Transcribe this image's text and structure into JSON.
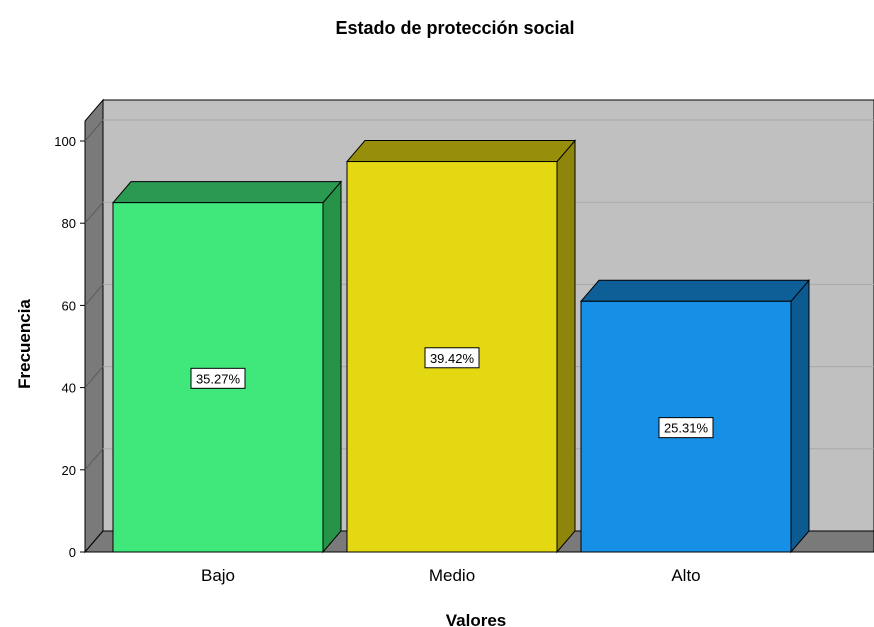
{
  "chart_data": {
    "type": "bar",
    "title": "Estado de protección social",
    "xlabel": "Valores",
    "ylabel": "Frecuencia",
    "categories": [
      "Bajo",
      "Medio",
      "Alto"
    ],
    "values": [
      85,
      95,
      61
    ],
    "data_labels": [
      "35.27%",
      "39.42%",
      "25.31%"
    ],
    "ylim": [
      0,
      100
    ],
    "yticks": [
      "0",
      "20",
      "40",
      "60",
      "80",
      "100"
    ],
    "grid": true,
    "style": "3d",
    "colors": {
      "bars": [
        "#40e87c",
        "#e4d812",
        "#1690e6"
      ],
      "bar_tops": [
        "#2a9a52",
        "#978f0c",
        "#0e5f98"
      ],
      "bar_sides": [
        "#279348",
        "#8e860b",
        "#0d5a90"
      ],
      "wall": "#c0c0c0",
      "floor_and_side_wall": "#7a7a7a"
    }
  }
}
